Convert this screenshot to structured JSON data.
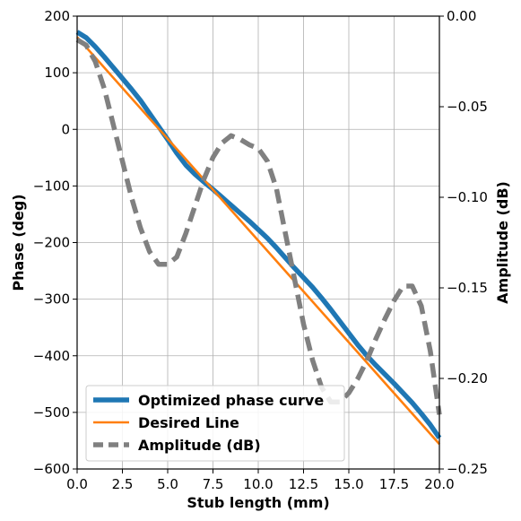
{
  "chart_data": {
    "type": "line",
    "xlabel": "Stub length (mm)",
    "ylabel_left": "Phase (deg)",
    "ylabel_right": "Amplitude (dB)",
    "xlim": [
      0,
      20
    ],
    "ylim_left": [
      -600,
      200
    ],
    "ylim_right": [
      -0.25,
      0.0
    ],
    "x_ticks": [
      "0.0",
      "2.5",
      "5.0",
      "7.5",
      "10.0",
      "12.5",
      "15.0",
      "17.5",
      "20.0"
    ],
    "y_left_ticks": [
      "200",
      "100",
      "0",
      "−100",
      "−200",
      "−300",
      "−400",
      "−500",
      "−600"
    ],
    "y_right_ticks": [
      "0.00",
      "−0.05",
      "−0.10",
      "−0.15",
      "−0.20",
      "−0.25"
    ],
    "grid": true,
    "legend_position": "lower-left",
    "series": [
      {
        "name": "Optimized phase curve",
        "axis": "left",
        "color": "#1f77b4",
        "style": "solid",
        "x": [
          0,
          0.5,
          1,
          1.5,
          2,
          2.5,
          3,
          3.5,
          4,
          4.5,
          5,
          5.5,
          6,
          6.5,
          7,
          7.5,
          8,
          8.5,
          9,
          9.5,
          10,
          10.5,
          11,
          11.5,
          12,
          12.5,
          13,
          13.5,
          14,
          14.5,
          15,
          15.5,
          16,
          16.5,
          17,
          17.5,
          18,
          18.5,
          19,
          19.5,
          20
        ],
        "y": [
          172,
          162,
          146,
          128,
          109,
          90,
          71,
          51,
          28,
          5,
          -18,
          -42,
          -63,
          -79,
          -93,
          -106,
          -120,
          -134,
          -148,
          -162,
          -177,
          -192,
          -209,
          -227,
          -245,
          -262,
          -279,
          -298,
          -318,
          -339,
          -360,
          -381,
          -400,
          -417,
          -433,
          -449,
          -466,
          -483,
          -502,
          -522,
          -545
        ]
      },
      {
        "name": "Desired Line",
        "axis": "left",
        "color": "#ff7f0e",
        "style": "solid",
        "x": [
          0,
          20
        ],
        "y": [
          163,
          -556
        ]
      },
      {
        "name": "Amplitude (dB)",
        "axis": "right",
        "color": "#808080",
        "style": "dashed",
        "x": [
          0,
          0.5,
          1,
          1.5,
          2,
          2.5,
          3,
          3.5,
          4,
          4.5,
          5,
          5.5,
          6,
          6.5,
          7,
          7.5,
          8,
          8.5,
          9,
          9.5,
          10,
          10.5,
          11,
          11.5,
          12,
          12.5,
          13,
          13.5,
          14,
          14.5,
          15,
          15.5,
          16,
          16.5,
          17,
          17.5,
          18,
          18.5,
          19,
          19.5,
          20
        ],
        "y": [
          -0.013,
          -0.016,
          -0.025,
          -0.04,
          -0.06,
          -0.08,
          -0.1,
          -0.117,
          -0.13,
          -0.137,
          -0.137,
          -0.133,
          -0.12,
          -0.105,
          -0.09,
          -0.078,
          -0.07,
          -0.066,
          -0.068,
          -0.071,
          -0.073,
          -0.08,
          -0.095,
          -0.12,
          -0.145,
          -0.17,
          -0.19,
          -0.205,
          -0.213,
          -0.213,
          -0.208,
          -0.2,
          -0.19,
          -0.178,
          -0.167,
          -0.157,
          -0.149,
          -0.149,
          -0.16,
          -0.185,
          -0.22
        ]
      }
    ]
  }
}
